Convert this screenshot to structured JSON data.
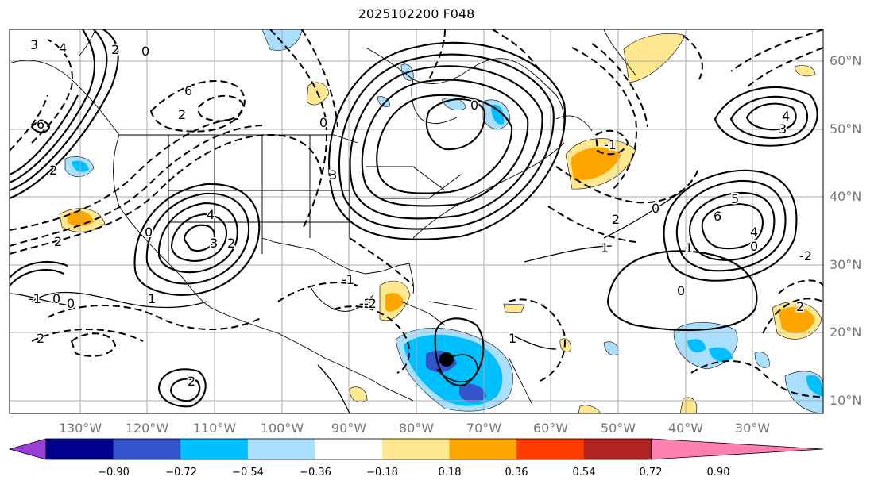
{
  "title": "2025102200 F048",
  "lat_labels": [
    "60°N",
    "50°N",
    "40°N",
    "30°N",
    "20°N",
    "10°N"
  ],
  "lon_labels": [
    "130°W",
    "120°W",
    "110°W",
    "100°W",
    "90°W",
    "80°W",
    "70°W",
    "60°W",
    "50°W",
    "40°W",
    "30°W"
  ],
  "colorbar": {
    "labels": [
      "−0.90",
      "−0.72",
      "−0.54",
      "−0.36",
      "−0.18",
      "0.18",
      "0.36",
      "0.54",
      "0.72",
      "0.90"
    ],
    "colors": [
      "#9a3fd6",
      "#00008c",
      "#3355cc",
      "#00bfff",
      "#aadfff",
      "#ffffff",
      "#ffe890",
      "#ffa500",
      "#ff3c00",
      "#b22222",
      "#ff80b0"
    ]
  },
  "contour_labels": [
    "3",
    "4",
    "2",
    "0",
    "6",
    "2",
    "2",
    "0",
    "-1",
    "0",
    "4",
    "3",
    "2",
    "2",
    "1",
    "-2",
    "0",
    "6",
    "3",
    "0",
    "-2",
    "2",
    "0",
    "0",
    "1",
    "-1",
    "1",
    "3",
    "4",
    "5",
    "6",
    "0",
    "2",
    "4",
    "-2",
    "0",
    "1",
    "-1",
    "2",
    "2"
  ]
}
